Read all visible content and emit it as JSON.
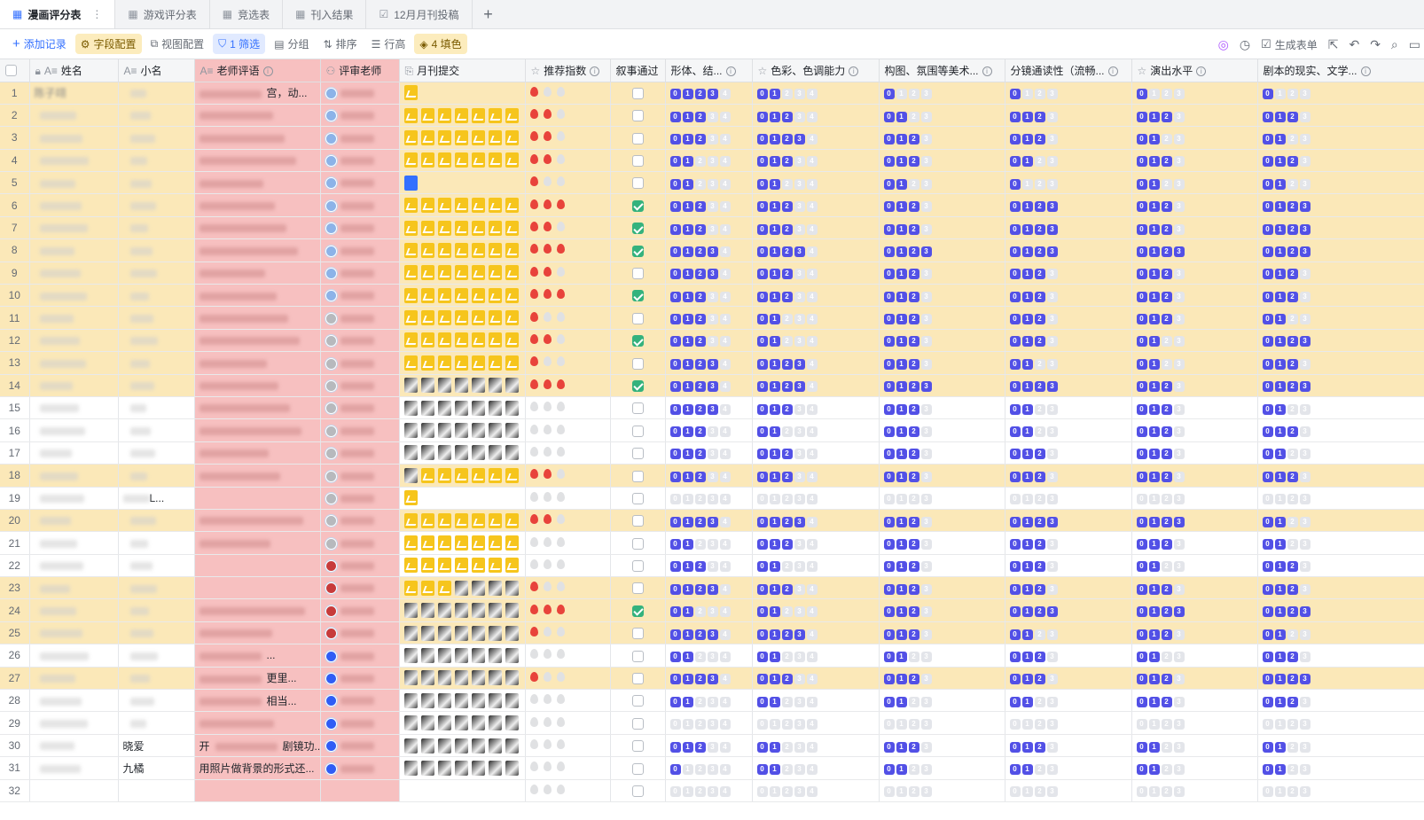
{
  "tabs": [
    {
      "label": "漫画评分表",
      "active": true,
      "icon": "table-icon"
    },
    {
      "label": "游戏评分表",
      "active": false,
      "icon": "table-icon"
    },
    {
      "label": "竞选表",
      "active": false,
      "icon": "table-icon"
    },
    {
      "label": "刊入结果",
      "active": false,
      "icon": "table-icon"
    },
    {
      "label": "12月月刊投稿",
      "active": false,
      "icon": "form-icon"
    }
  ],
  "toolbar": {
    "add_record": "添加记录",
    "field_config": "字段配置",
    "view_config": "视图配置",
    "filter": "1 筛选",
    "group": "分组",
    "sort": "排序",
    "row_height": "行高",
    "fill": "4 填色",
    "generate_form": "生成表单"
  },
  "columns": [
    "姓名",
    "小名",
    "老师评语",
    "评审老师",
    "月刊提交",
    "推荐指数",
    "叙事通过",
    "形体、结...",
    "色彩、色调能力",
    "构图、氛围等美术...",
    "分镜通读性（流畅...",
    "演出水平",
    "剧本的现实、文学..."
  ],
  "colors": {
    "highlight_row": "#fbe8b8",
    "comment_column": "#f7c0c0",
    "score_on": "#5250e6",
    "score_off": "#e3e5ea",
    "fire_on": "#e8433b",
    "check_on": "#34b27d",
    "accent": "#3370ff"
  },
  "score_digits": [
    "0",
    "1",
    "2",
    "3",
    "4"
  ],
  "visible_cells": {
    "r1_name": "陈子翊",
    "r1_comment": "宫，动...",
    "r30_nick": "晓爱",
    "r30_comment_start": "开",
    "r30_comment_end": "剧镜功...",
    "r31_nick": "九橘",
    "r31_comment": "用照片做背景的形式还...",
    "r19_nick_end": "L...",
    "r26_comment": "...",
    "r27_comment": "更里...",
    "r28_comment": "相当..."
  },
  "rows": [
    {
      "no": "1",
      "hl": true,
      "reviewer": "a",
      "thumbs": "y1",
      "fire": 1,
      "check": false,
      "s": [
        4,
        2,
        1,
        1,
        1,
        1
      ]
    },
    {
      "no": "2",
      "hl": true,
      "reviewer": "a",
      "thumbs": "y7",
      "fire": 2,
      "check": false,
      "s": [
        3,
        3,
        2,
        3,
        3,
        3
      ]
    },
    {
      "no": "3",
      "hl": true,
      "reviewer": "a",
      "thumbs": "y7",
      "fire": 2,
      "check": false,
      "s": [
        3,
        4,
        3,
        3,
        2,
        2
      ]
    },
    {
      "no": "4",
      "hl": true,
      "reviewer": "a",
      "thumbs": "y7",
      "fire": 2,
      "check": false,
      "s": [
        2,
        3,
        3,
        2,
        3,
        3
      ]
    },
    {
      "no": "5",
      "hl": true,
      "reviewer": "a",
      "thumbs": "b1",
      "fire": 1,
      "check": false,
      "s": [
        2,
        2,
        2,
        1,
        2,
        2
      ]
    },
    {
      "no": "6",
      "hl": true,
      "reviewer": "p",
      "thumbs": "y7",
      "fire": 3,
      "check": true,
      "s": [
        3,
        3,
        3,
        4,
        3,
        4
      ]
    },
    {
      "no": "7",
      "hl": true,
      "reviewer": "p",
      "thumbs": "y7",
      "fire": 2,
      "check": true,
      "s": [
        3,
        3,
        3,
        4,
        3,
        4
      ]
    },
    {
      "no": "8",
      "hl": true,
      "reviewer": "p",
      "thumbs": "y7",
      "fire": 3,
      "check": true,
      "s": [
        4,
        4,
        4,
        4,
        4,
        4
      ]
    },
    {
      "no": "9",
      "hl": true,
      "reviewer": "p",
      "thumbs": "y7",
      "fire": 2,
      "check": false,
      "s": [
        4,
        3,
        3,
        3,
        3,
        3
      ]
    },
    {
      "no": "10",
      "hl": true,
      "reviewer": "p",
      "thumbs": "y7",
      "fire": 3,
      "check": true,
      "s": [
        3,
        3,
        3,
        3,
        3,
        3
      ]
    },
    {
      "no": "11",
      "hl": true,
      "reviewer": "g",
      "thumbs": "y7",
      "fire": 1,
      "check": false,
      "s": [
        3,
        2,
        3,
        3,
        3,
        2
      ]
    },
    {
      "no": "12",
      "hl": true,
      "reviewer": "g",
      "thumbs": "y7",
      "fire": 2,
      "check": true,
      "s": [
        3,
        2,
        3,
        3,
        2,
        4
      ]
    },
    {
      "no": "13",
      "hl": true,
      "reviewer": "g",
      "thumbs": "y7",
      "fire": 1,
      "check": false,
      "s": [
        4,
        4,
        3,
        2,
        2,
        3
      ]
    },
    {
      "no": "14",
      "hl": true,
      "reviewer": "g",
      "thumbs": "w7",
      "fire": 3,
      "check": true,
      "s": [
        4,
        4,
        4,
        4,
        3,
        4
      ]
    },
    {
      "no": "15",
      "hl": false,
      "reviewer": "g",
      "thumbs": "w7",
      "fire": 0,
      "check": false,
      "s": [
        4,
        3,
        3,
        2,
        3,
        2
      ]
    },
    {
      "no": "16",
      "hl": false,
      "reviewer": "z",
      "thumbs": "w7",
      "fire": 0,
      "check": false,
      "s": [
        3,
        2,
        3,
        2,
        3,
        3
      ]
    },
    {
      "no": "17",
      "hl": false,
      "reviewer": "z",
      "thumbs": "w7",
      "fire": 0,
      "check": false,
      "s": [
        3,
        3,
        3,
        3,
        3,
        2
      ]
    },
    {
      "no": "18",
      "hl": true,
      "reviewer": "z",
      "thumbs": "wy7",
      "fire": 2,
      "check": false,
      "s": [
        3,
        3,
        3,
        3,
        3,
        3
      ]
    },
    {
      "no": "19",
      "hl": false,
      "reviewer": "z",
      "thumbs": "y1",
      "fire": 0,
      "check": false,
      "s": [
        0,
        0,
        0,
        0,
        0,
        0
      ]
    },
    {
      "no": "20",
      "hl": true,
      "reviewer": "z",
      "thumbs": "y7",
      "fire": 2,
      "check": false,
      "s": [
        4,
        4,
        3,
        4,
        4,
        2
      ]
    },
    {
      "no": "21",
      "hl": false,
      "reviewer": "z",
      "thumbs": "y7",
      "fire": 0,
      "check": false,
      "s": [
        2,
        3,
        3,
        3,
        3,
        2
      ]
    },
    {
      "no": "22",
      "hl": false,
      "reviewer": "r",
      "thumbs": "y7",
      "fire": 0,
      "check": false,
      "s": [
        3,
        2,
        3,
        3,
        2,
        3
      ]
    },
    {
      "no": "23",
      "hl": true,
      "reviewer": "r",
      "thumbs": "yw7",
      "fire": 1,
      "check": false,
      "s": [
        4,
        3,
        3,
        3,
        3,
        3
      ]
    },
    {
      "no": "24",
      "hl": true,
      "reviewer": "r",
      "thumbs": "w7",
      "fire": 3,
      "check": true,
      "s": [
        2,
        2,
        3,
        4,
        4,
        4
      ]
    },
    {
      "no": "25",
      "hl": true,
      "reviewer": "r",
      "thumbs": "w7",
      "fire": 1,
      "check": false,
      "s": [
        4,
        4,
        3,
        2,
        3,
        2
      ]
    },
    {
      "no": "26",
      "hl": false,
      "reviewer": "b",
      "thumbs": "w7",
      "fire": 0,
      "check": false,
      "s": [
        2,
        2,
        2,
        3,
        2,
        3
      ]
    },
    {
      "no": "27",
      "hl": true,
      "reviewer": "b",
      "thumbs": "w7",
      "fire": 1,
      "check": false,
      "s": [
        4,
        3,
        3,
        3,
        3,
        4
      ]
    },
    {
      "no": "28",
      "hl": false,
      "reviewer": "b",
      "thumbs": "w7",
      "fire": 0,
      "check": false,
      "s": [
        2,
        2,
        2,
        2,
        3,
        3
      ]
    },
    {
      "no": "29",
      "hl": false,
      "reviewer": "b",
      "thumbs": "w7",
      "fire": 0,
      "check": false,
      "s": [
        0,
        0,
        0,
        0,
        0,
        0
      ]
    },
    {
      "no": "30",
      "hl": false,
      "reviewer": "b",
      "thumbs": "w7",
      "fire": 0,
      "check": false,
      "s": [
        3,
        2,
        3,
        3,
        2,
        2
      ]
    },
    {
      "no": "31",
      "hl": false,
      "reviewer": "b",
      "thumbs": "k7",
      "fire": 0,
      "check": false,
      "s": [
        1,
        2,
        2,
        2,
        2,
        2
      ]
    },
    {
      "no": "32",
      "hl": false,
      "reviewer": "",
      "thumbs": "",
      "fire": 0,
      "check": false,
      "s": [
        0,
        0,
        0,
        0,
        0,
        0
      ]
    }
  ]
}
